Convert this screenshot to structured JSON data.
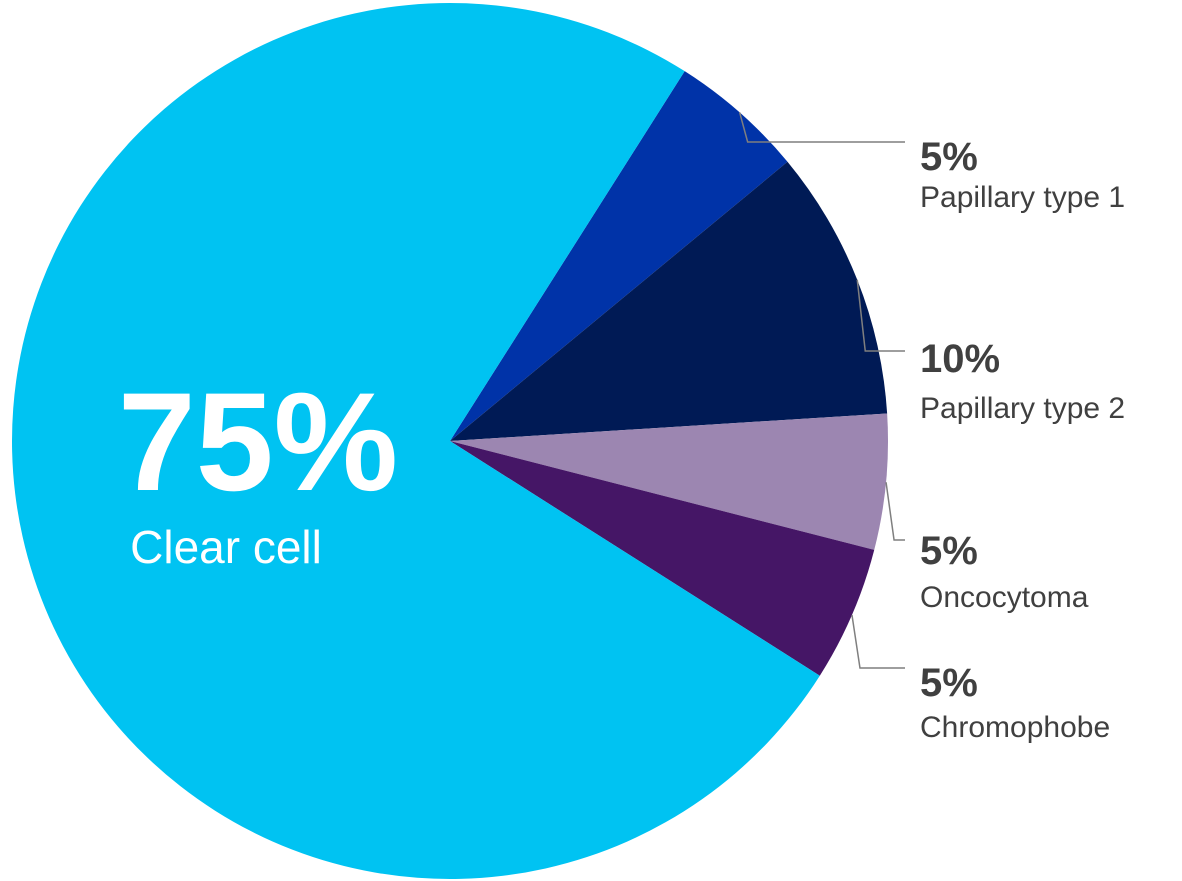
{
  "chart_data": {
    "type": "pie",
    "title": "",
    "slices": [
      {
        "label": "Clear cell",
        "value": 75,
        "value_label": "75%",
        "color": "#00c3f2"
      },
      {
        "label": "Papillary type 1",
        "value": 5,
        "value_label": "5%",
        "color": "#0033a8"
      },
      {
        "label": "Papillary type 2",
        "value": 10,
        "value_label": "10%",
        "color": "#001a55"
      },
      {
        "label": "Oncocytoma",
        "value": 5,
        "value_label": "5%",
        "color": "#9c86b1"
      },
      {
        "label": "Chromophobe",
        "value": 5,
        "value_label": "5%",
        "color": "#451666"
      }
    ],
    "legend": "none",
    "labels": "callouts-right"
  }
}
